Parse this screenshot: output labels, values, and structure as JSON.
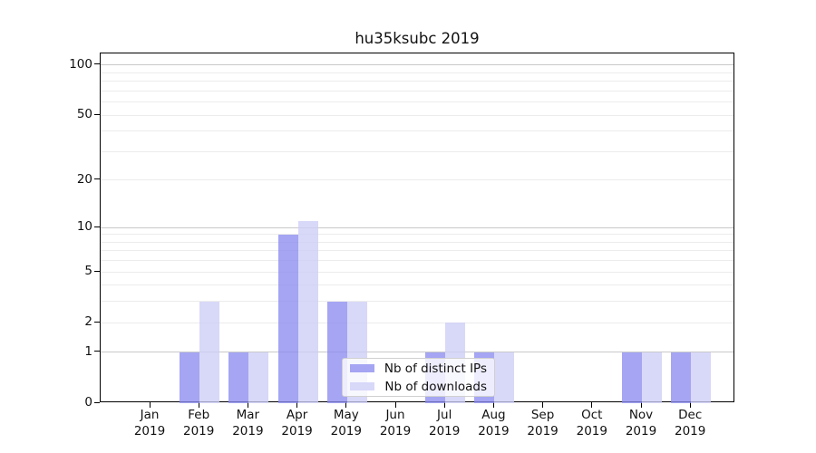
{
  "chart_data": {
    "type": "bar",
    "title": "hu35ksubc 2019",
    "categories": [
      "Jan",
      "Feb",
      "Mar",
      "Apr",
      "May",
      "Jun",
      "Jul",
      "Aug",
      "Sep",
      "Oct",
      "Nov",
      "Dec"
    ],
    "category_year": "2019",
    "series": [
      {
        "name": "Nb of distinct IPs",
        "values": [
          0,
          1,
          1,
          9,
          3,
          0,
          1,
          1,
          0,
          0,
          1,
          1
        ]
      },
      {
        "name": "Nb of downloads",
        "values": [
          0,
          3,
          1,
          11,
          3,
          0,
          2,
          1,
          0,
          0,
          1,
          1
        ]
      }
    ],
    "y_axis": {
      "scale": "log1p",
      "ylim": [
        0,
        117.6
      ],
      "tick_labels": [
        "0",
        "1",
        "2",
        "5",
        "10",
        "20",
        "50",
        "100"
      ],
      "tick_values": [
        0,
        1,
        2,
        5,
        10,
        20,
        50,
        100
      ],
      "major_gridlines": [
        1,
        10,
        100
      ],
      "minor_gridlines": [
        2,
        3,
        4,
        5,
        6,
        7,
        8,
        9,
        20,
        30,
        40,
        50,
        60,
        70,
        80,
        90
      ]
    },
    "legend_position": "lower-center",
    "grid": true,
    "colors": {
      "distinct_ips_bar": "rgba(140,140,240,0.78)",
      "downloads_bar": "rgba(205,205,247,0.78)",
      "legend_swatch_ips": "#a5a5f3",
      "legend_swatch_downloads": "#d8d8f9",
      "grid_major": "#c9c9c9",
      "grid_minor": "#ececec",
      "axis": "#000000"
    }
  }
}
